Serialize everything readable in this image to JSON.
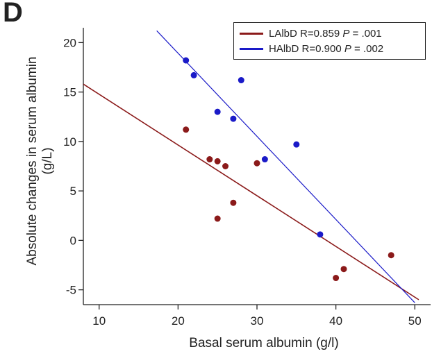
{
  "panel_label": "D",
  "chart_data": {
    "type": "scatter",
    "xlabel": "Basal serum albumin (g/l)",
    "ylabel_line1": "Absolute changes in serum albumin",
    "ylabel_line2": "(g/L)",
    "xlim": [
      8,
      52
    ],
    "ylim": [
      -6.5,
      21.5
    ],
    "xticks": [
      10,
      20,
      30,
      40,
      50
    ],
    "yticks": [
      -5,
      0,
      5,
      10,
      15,
      20
    ],
    "grid": false,
    "legend_position": "top-right",
    "series": [
      {
        "name": "LAlbD",
        "stat": "R=0.859",
        "p_label": "P",
        "p_value": "= .001",
        "color": "#8b1a1a",
        "points": [
          [
            21,
            11.2
          ],
          [
            24,
            8.2
          ],
          [
            25,
            8.0
          ],
          [
            25,
            2.2
          ],
          [
            26,
            7.5
          ],
          [
            27,
            3.8
          ],
          [
            30,
            7.8
          ],
          [
            40,
            -3.8
          ],
          [
            41,
            -2.9
          ],
          [
            47,
            -1.5
          ]
        ],
        "fit_line": [
          [
            8,
            15.8
          ],
          [
            50.5,
            -6.0
          ]
        ]
      },
      {
        "name": "HAlbD",
        "stat": "R=0.900",
        "p_label": "P",
        "p_value": "= .002",
        "color": "#1a1ac8",
        "points": [
          [
            21,
            18.2
          ],
          [
            22,
            16.7
          ],
          [
            25,
            13.0
          ],
          [
            27,
            12.3
          ],
          [
            28,
            16.2
          ],
          [
            31,
            8.2
          ],
          [
            35,
            9.7
          ],
          [
            38,
            0.6
          ]
        ],
        "fit_line": [
          [
            17.3,
            21.2
          ],
          [
            50,
            -6.3
          ]
        ]
      }
    ]
  }
}
